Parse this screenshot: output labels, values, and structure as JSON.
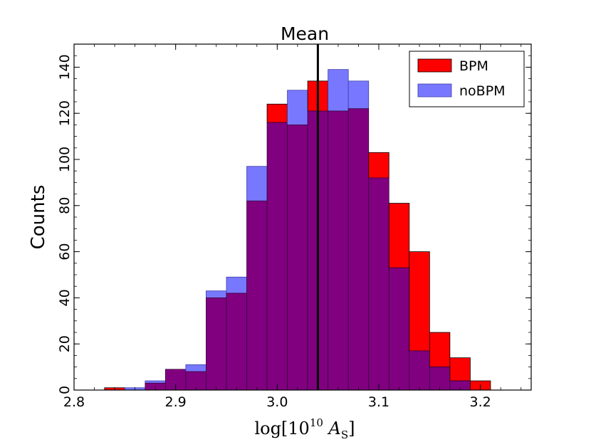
{
  "chart_data": {
    "type": "bar",
    "title": "Mean",
    "xlabel": "log[10^10 A_S]",
    "xlabel_parts": {
      "pre": "log[10",
      "sup": "10",
      "mid": " A",
      "sub": "S",
      "post": "]"
    },
    "ylabel": "Counts",
    "xlim": [
      2.8,
      3.25
    ],
    "ylim": [
      0,
      150
    ],
    "x_ticks": [
      "2.8",
      "2.9",
      "3.0",
      "3.1",
      "3.2"
    ],
    "x_tick_values": [
      2.8,
      2.9,
      3.0,
      3.1,
      3.2
    ],
    "y_ticks": [
      "0",
      "20",
      "40",
      "60",
      "80",
      "100",
      "120",
      "140"
    ],
    "y_tick_values": [
      0,
      20,
      40,
      60,
      80,
      100,
      120,
      140
    ],
    "bin_edges": [
      2.83,
      2.85,
      2.87,
      2.89,
      2.91,
      2.93,
      2.95,
      2.97,
      2.99,
      3.01,
      3.03,
      3.05,
      3.07,
      3.09,
      3.11,
      3.13,
      3.15,
      3.17,
      3.19,
      3.21
    ],
    "mean_line_x": 3.04,
    "grid": false,
    "legend_position": "top-right",
    "series": [
      {
        "name": "BPM",
        "color": "#ff0000",
        "values": [
          1,
          0,
          3,
          9,
          8,
          40,
          42,
          82,
          124,
          115,
          134,
          121,
          122,
          103,
          81,
          60,
          25,
          14,
          4,
          2
        ]
      },
      {
        "name": "noBPM",
        "color": "#7878ff",
        "values": [
          0,
          1,
          4,
          9,
          11,
          43,
          49,
          97,
          116,
          130,
          121,
          139,
          134,
          92,
          53,
          17,
          10,
          4,
          0,
          0
        ]
      }
    ],
    "overlap_color": "#800080",
    "mean_line_color": "#000000"
  }
}
